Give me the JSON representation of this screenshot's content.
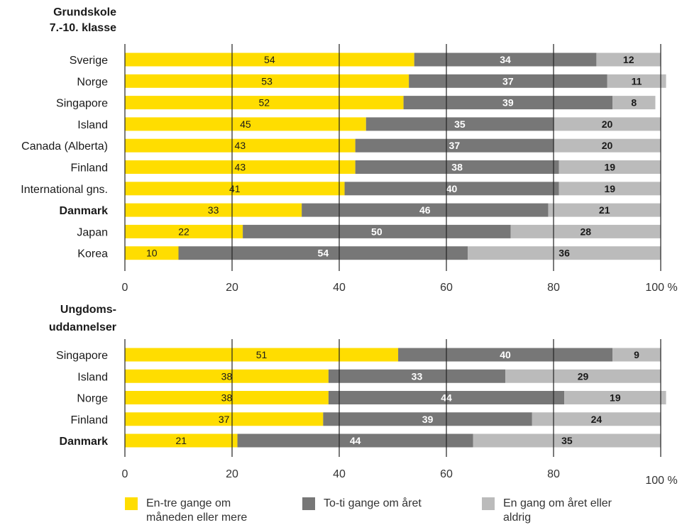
{
  "colors": {
    "en_tre": "#FFDD00",
    "to_ti": "#777777",
    "en_gang": "#BBBBBB",
    "grid": "#222222",
    "text": "#1a1a1a"
  },
  "legend": [
    {
      "key": "en_tre",
      "label": "En-tre gange om måneden eller mere"
    },
    {
      "key": "to_ti",
      "label": "To-ti gange om året"
    },
    {
      "key": "en_gang",
      "label": "En gang om året eller aldrig"
    }
  ],
  "chart_data": [
    {
      "type": "bar",
      "orientation": "horizontal",
      "stacked": true,
      "title": "Grundskole 7.-10. klasse",
      "categories": [
        "Sverige",
        "Norge",
        "Singapore",
        "Island",
        "Canada (Alberta)",
        "Finland",
        "International gns.",
        "Danmark",
        "Japan",
        "Korea"
      ],
      "highlight": [
        "Danmark"
      ],
      "series": [
        {
          "name": "En-tre gange om måneden eller mere",
          "values": [
            54,
            53,
            52,
            45,
            43,
            43,
            41,
            33,
            22,
            10
          ]
        },
        {
          "name": "To-ti gange om året",
          "values": [
            34,
            37,
            39,
            35,
            37,
            38,
            40,
            46,
            50,
            54
          ]
        },
        {
          "name": "En gang om året eller aldrig",
          "values": [
            12,
            11,
            8,
            20,
            20,
            19,
            19,
            21,
            28,
            36
          ]
        }
      ],
      "xlim": [
        0,
        100
      ],
      "xticks": [
        "0",
        "20",
        "40",
        "60",
        "80",
        "100 %"
      ],
      "grid": true
    },
    {
      "type": "bar",
      "orientation": "horizontal",
      "stacked": true,
      "title": "Ungdoms-uddannelser",
      "categories": [
        "Singapore",
        "Island",
        "Norge",
        "Finland",
        "Danmark"
      ],
      "highlight": [
        "Danmark"
      ],
      "series": [
        {
          "name": "En-tre gange om måneden eller mere",
          "values": [
            51,
            38,
            38,
            37,
            21
          ]
        },
        {
          "name": "To-ti gange om året",
          "values": [
            40,
            33,
            44,
            39,
            44
          ]
        },
        {
          "name": "En gang om året eller aldrig",
          "values": [
            9,
            29,
            19,
            24,
            35
          ]
        }
      ],
      "xlim": [
        0,
        100
      ],
      "xticks": [
        "0",
        "20",
        "40",
        "60",
        "80",
        "100 %"
      ],
      "grid": true
    }
  ]
}
